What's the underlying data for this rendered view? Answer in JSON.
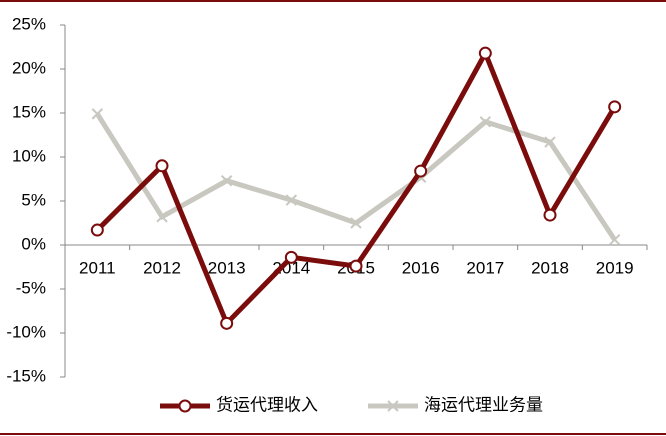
{
  "chart_data": {
    "type": "line",
    "categories": [
      "2011",
      "2012",
      "2013",
      "2014",
      "2015",
      "2016",
      "2017",
      "2018",
      "2019"
    ],
    "series": [
      {
        "name": "货运代理收入",
        "color": "#7b0c0c",
        "values": [
          1.7,
          9.0,
          -8.9,
          -1.4,
          -2.4,
          8.4,
          21.8,
          3.4,
          15.7
        ]
      },
      {
        "name": "海运代理业务量",
        "color": "#c8c8c0",
        "values": [
          14.9,
          3.2,
          7.3,
          5.1,
          2.5,
          7.7,
          14.0,
          11.7,
          0.6
        ]
      }
    ],
    "ylim": [
      -15,
      25
    ],
    "yticks": [
      {
        "value": 25,
        "label": "25%"
      },
      {
        "value": 20,
        "label": "20%"
      },
      {
        "value": 15,
        "label": "15%"
      },
      {
        "value": 10,
        "label": "10%"
      },
      {
        "value": 5,
        "label": "5%"
      },
      {
        "value": 0,
        "label": "0%"
      },
      {
        "value": -5,
        "label": "-5%"
      },
      {
        "value": -10,
        "label": "-10%"
      },
      {
        "value": -15,
        "label": "-15%"
      }
    ],
    "legend": "bottom"
  }
}
